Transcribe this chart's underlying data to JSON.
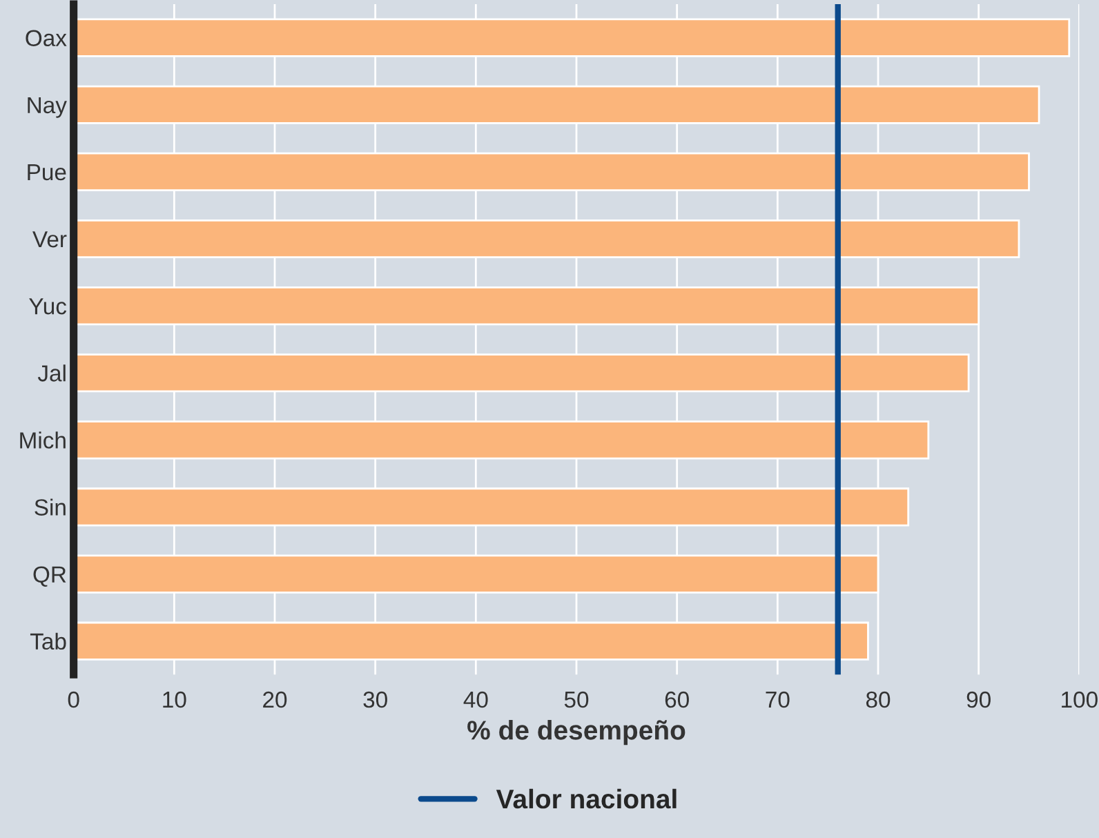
{
  "chart_data": {
    "type": "bar",
    "orientation": "horizontal",
    "xlabel": "% de desempeño",
    "categories": [
      "Oax",
      "Nay",
      "Pue",
      "Ver",
      "Yuc",
      "Jal",
      "Mich",
      "Sin",
      "QR",
      "Tab"
    ],
    "values": [
      99,
      96,
      95,
      94,
      90,
      89,
      85,
      83,
      80,
      79
    ],
    "color": "#fbb57b",
    "xlim": [
      0,
      100
    ],
    "xticks": [
      0,
      10,
      20,
      30,
      40,
      50,
      60,
      70,
      80,
      90,
      100
    ],
    "grid": "x",
    "ref_lines": [
      {
        "axis": "x",
        "value": 76,
        "label": "Valor nacional",
        "color": "#0b4a8c"
      }
    ],
    "legend": "bottom"
  }
}
